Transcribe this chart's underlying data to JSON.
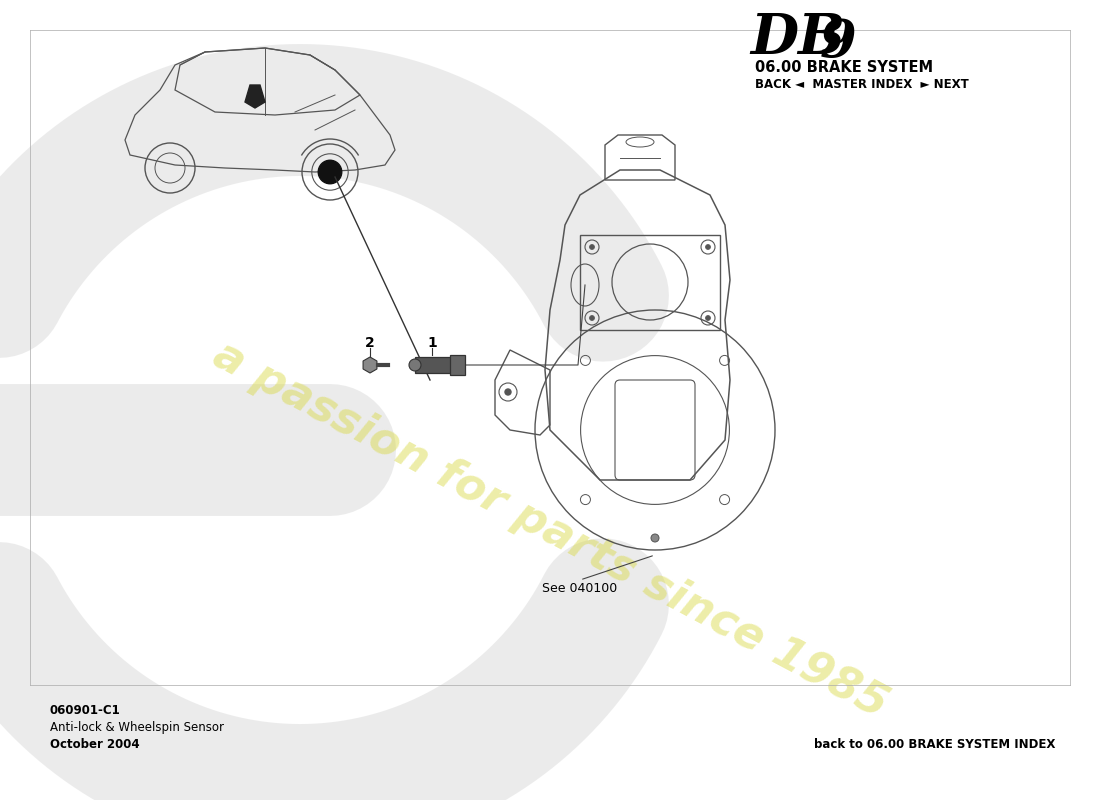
{
  "title_db9_text": "DB",
  "title_9": "9",
  "title_system": "06.00 BRAKE SYSTEM",
  "nav_text": "BACK ◄  MASTER INDEX  ► NEXT",
  "part_number": "060901-C1",
  "part_name": "Anti-lock & Wheelspin Sensor",
  "date": "October 2004",
  "bottom_right": "back to 06.00 BRAKE SYSTEM INDEX",
  "see_ref": "See 040100",
  "label_1": "1",
  "label_2": "2",
  "watermark_text": "a passion for parts since 1985",
  "bg_color": "#ffffff",
  "text_color": "#000000",
  "line_color": "#555555",
  "watermark_color": "#d8d840",
  "watermark_alpha": 0.45,
  "euro_e_color": "#c8c8c8",
  "euro_e_alpha": 0.35
}
